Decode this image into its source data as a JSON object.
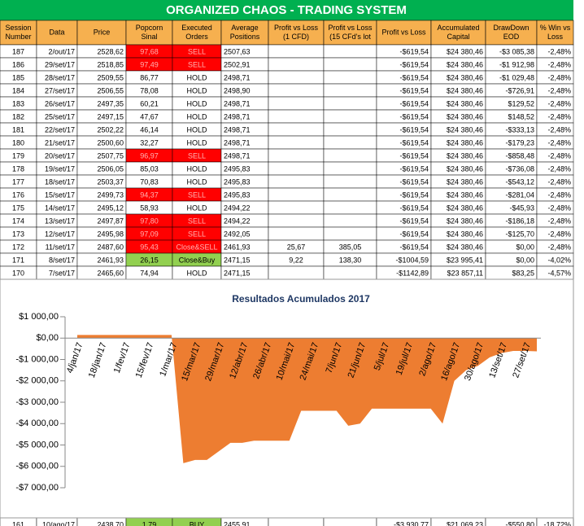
{
  "table": {
    "title": "ORGANIZED CHAOS - TRADING SYSTEM",
    "headers": [
      [
        "Session",
        "Number"
      ],
      [
        "Data"
      ],
      [
        "Price"
      ],
      [
        "Popcorn",
        "Sinal"
      ],
      [
        "Executed",
        "Orders"
      ],
      [
        "Average",
        "Positions"
      ],
      [
        "Profit vs Loss",
        "(1 CFD)"
      ],
      [
        "Profit vs Loss",
        "(15 CFd's lot"
      ],
      [
        "Profit vs Loss"
      ],
      [
        "Accumulated",
        "Capital"
      ],
      [
        "DrawDown",
        "EOD"
      ],
      [
        "% Win vs",
        "Loss"
      ]
    ],
    "rows": [
      [
        "187",
        "2/out/17",
        "2528,62",
        "97,68",
        "SELL",
        "2507,63",
        "",
        "",
        "-$619,54",
        "$24 380,46",
        "-$3 085,38",
        "-2,48%"
      ],
      [
        "186",
        "29/set/17",
        "2518,85",
        "97,49",
        "SELL",
        "2502,91",
        "",
        "",
        "-$619,54",
        "$24 380,46",
        "-$1 912,98",
        "-2,48%"
      ],
      [
        "185",
        "28/set/17",
        "2509,55",
        "86,77",
        "HOLD",
        "2498,71",
        "",
        "",
        "-$619,54",
        "$24 380,46",
        "-$1 029,48",
        "-2,48%"
      ],
      [
        "184",
        "27/set/17",
        "2506,55",
        "78,08",
        "HOLD",
        "2498,90",
        "",
        "",
        "-$619,54",
        "$24 380,46",
        "-$726,91",
        "-2,48%"
      ],
      [
        "183",
        "26/set/17",
        "2497,35",
        "60,21",
        "HOLD",
        "2498,71",
        "",
        "",
        "-$619,54",
        "$24 380,46",
        "$129,52",
        "-2,48%"
      ],
      [
        "182",
        "25/set/17",
        "2497,15",
        "47,67",
        "HOLD",
        "2498,71",
        "",
        "",
        "-$619,54",
        "$24 380,46",
        "$148,52",
        "-2,48%"
      ],
      [
        "181",
        "22/set/17",
        "2502,22",
        "46,14",
        "HOLD",
        "2498,71",
        "",
        "",
        "-$619,54",
        "$24 380,46",
        "-$333,13",
        "-2,48%"
      ],
      [
        "180",
        "21/set/17",
        "2500,60",
        "32,27",
        "HOLD",
        "2498,71",
        "",
        "",
        "-$619,54",
        "$24 380,46",
        "-$179,23",
        "-2,48%"
      ],
      [
        "179",
        "20/set/17",
        "2507,75",
        "96,97",
        "SELL",
        "2498,71",
        "",
        "",
        "-$619,54",
        "$24 380,46",
        "-$858,48",
        "-2,48%"
      ],
      [
        "178",
        "19/set/17",
        "2506,05",
        "85,03",
        "HOLD",
        "2495,83",
        "",
        "",
        "-$619,54",
        "$24 380,46",
        "-$736,08",
        "-2,48%"
      ],
      [
        "177",
        "18/set/17",
        "2503,37",
        "70,83",
        "HOLD",
        "2495,83",
        "",
        "",
        "-$619,54",
        "$24 380,46",
        "-$543,12",
        "-2,48%"
      ],
      [
        "176",
        "15/set/17",
        "2499,73",
        "94,37",
        "SELL",
        "2495,83",
        "",
        "",
        "-$619,54",
        "$24 380,46",
        "-$281,04",
        "-2,48%"
      ],
      [
        "175",
        "14/set/17",
        "2495,12",
        "58,93",
        "HOLD",
        "2494,22",
        "",
        "",
        "-$619,54",
        "$24 380,46",
        "-$45,93",
        "-2,48%"
      ],
      [
        "174",
        "13/set/17",
        "2497,87",
        "97,80",
        "SELL",
        "2494,22",
        "",
        "",
        "-$619,54",
        "$24 380,46",
        "-$186,18",
        "-2,48%"
      ],
      [
        "173",
        "12/set/17",
        "2495,98",
        "97,09",
        "SELL",
        "2492,05",
        "",
        "",
        "-$619,54",
        "$24 380,46",
        "-$125,70",
        "-2,48%"
      ],
      [
        "172",
        "11/set/17",
        "2487,60",
        "95,43",
        "Close&SELL",
        "2461,93",
        "25,67",
        "385,05",
        "-$619,54",
        "$24 380,46",
        "$0,00",
        "-2,48%"
      ],
      [
        "171",
        "8/set/17",
        "2461,93",
        "26,15",
        "Close&Buy",
        "2471,15",
        "9,22",
        "138,30",
        "-$1004,59",
        "$23 995,41",
        "$0,00",
        "-4,02%"
      ],
      [
        "170",
        "7/set/17",
        "2465,60",
        "74,94",
        "HOLD",
        "2471,15",
        "",
        "",
        "-$1142,89",
        "$23 857,11",
        "$83,25",
        "-4,57%"
      ],
      [
        "161",
        "10/ago/17",
        "2438,70",
        "1,79",
        "BUY",
        "2455,91",
        "",
        "",
        "-$3 930,77",
        "$21 069,23",
        "-$550,80",
        "-18,72%"
      ]
    ],
    "signal_colors": [
      "#ff0000",
      "#ff0000",
      null,
      null,
      null,
      null,
      null,
      null,
      "#ff0000",
      null,
      null,
      "#ff0000",
      null,
      "#ff0000",
      "#ff0000",
      "#ff0000",
      "#92d050",
      null,
      "#92d050"
    ]
  },
  "chart_data": {
    "type": "area",
    "title": "Resultados Acumulados 2017",
    "color": "#ed7d31",
    "categories": [
      "4/jan/17",
      null,
      "18/jan/17",
      null,
      "1/fev/17",
      null,
      "15/fev/17",
      null,
      "1/mar/17",
      null,
      "15/mar/17",
      null,
      "29/mar/17",
      null,
      "12/abr/17",
      null,
      "26/abr/17",
      null,
      "10/mai/17",
      null,
      "24/mai/17",
      null,
      "7/jun/17",
      null,
      "21/jun/17",
      null,
      "5/jul/17",
      null,
      "19/jul/17",
      null,
      "2/ago/17",
      null,
      "16/ago/17",
      null,
      "30/ago/17",
      null,
      "13/set/17",
      null,
      "27/set/17",
      null
    ],
    "values": [
      150,
      150,
      150,
      150,
      150,
      150,
      150,
      150,
      150,
      -5850,
      -5700,
      -5700,
      -5300,
      -4900,
      -4900,
      -4800,
      -4800,
      -4800,
      -4800,
      -3400,
      -3400,
      -3400,
      -3400,
      -4100,
      -4000,
      -3300,
      -3300,
      -3300,
      -3300,
      -3300,
      -3300,
      -4000,
      -2000,
      -1500,
      -1300,
      -900,
      -700,
      -600,
      -600,
      -619.54
    ],
    "ylim": [
      -7000,
      1000
    ],
    "yticks": [
      {
        "value": 1000,
        "label": "$1 000,00"
      },
      {
        "value": 0,
        "label": "$0,00"
      },
      {
        "value": -1000,
        "label": "-$1 000,00"
      },
      {
        "value": -2000,
        "label": "-$2 000,00"
      },
      {
        "value": -3000,
        "label": "-$3 000,00"
      },
      {
        "value": -4000,
        "label": "-$4 000,00"
      },
      {
        "value": -5000,
        "label": "-$5 000,00"
      },
      {
        "value": -6000,
        "label": "-$6 000,00"
      },
      {
        "value": -7000,
        "label": "-$7 000,00"
      }
    ]
  }
}
